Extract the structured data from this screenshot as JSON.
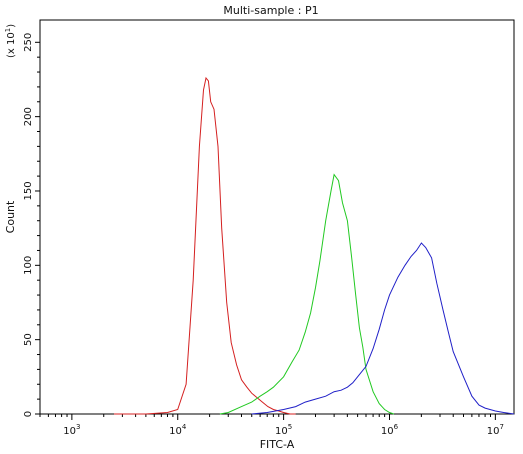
{
  "chart_data": {
    "type": "line",
    "title": "Multi-sample : P1",
    "xlabel": "FITC-A",
    "ylabel": "Count",
    "y_multiplier_label": "(x 10",
    "y_multiplier_exp": "1",
    "x_scale": "log",
    "xlim": [
      500,
      15000000
    ],
    "ylim": [
      0,
      265
    ],
    "x_ticks": [
      {
        "value": 1000,
        "base": "10",
        "exp": "3"
      },
      {
        "value": 10000,
        "base": "10",
        "exp": "4"
      },
      {
        "value": 100000,
        "base": "10",
        "exp": "5"
      },
      {
        "value": 1000000,
        "base": "10",
        "exp": "6"
      },
      {
        "value": 10000000,
        "base": "10",
        "exp": "7"
      }
    ],
    "y_ticks": [
      0,
      50,
      100,
      150,
      200,
      250
    ],
    "grid": false,
    "legend": "none",
    "series": [
      {
        "color": "#d42020",
        "x": [
          2500,
          5000,
          8000,
          10000,
          12000,
          14000,
          16000,
          17500,
          18500,
          19500,
          20500,
          22000,
          24000,
          26000,
          29000,
          32000,
          36000,
          40000,
          45000,
          50000,
          56000,
          63000,
          71000,
          80000,
          90000,
          100000,
          115000,
          130000
        ],
        "y": [
          0,
          0,
          1,
          3,
          20,
          90,
          180,
          218,
          226,
          224,
          210,
          205,
          180,
          125,
          75,
          48,
          33,
          23,
          18,
          14,
          11,
          8,
          5,
          3,
          2,
          1,
          0,
          0
        ]
      },
      {
        "color": "#22c922",
        "x": [
          25000,
          30000,
          40000,
          50000,
          60000,
          70000,
          80000,
          100000,
          120000,
          140000,
          160000,
          180000,
          200000,
          220000,
          250000,
          280000,
          300000,
          330000,
          360000,
          400000,
          440000,
          480000,
          520000,
          560000,
          600000,
          700000,
          800000,
          900000,
          1000000,
          1100000
        ],
        "y": [
          0,
          1,
          5,
          8,
          12,
          15,
          18,
          25,
          35,
          43,
          55,
          68,
          85,
          103,
          130,
          150,
          161,
          157,
          142,
          130,
          105,
          80,
          58,
          45,
          30,
          15,
          7,
          3,
          1,
          0
        ]
      },
      {
        "color": "#2020c8",
        "x": [
          50000,
          70000,
          100000,
          130000,
          160000,
          200000,
          250000,
          300000,
          350000,
          400000,
          450000,
          500000,
          600000,
          700000,
          800000,
          900000,
          1000000,
          1200000,
          1400000,
          1600000,
          1800000,
          2000000,
          2200000,
          2500000,
          2800000,
          3200000,
          3600000,
          4000000,
          5000000,
          6000000,
          7000000,
          8000000,
          10000000,
          12000000,
          15000000
        ],
        "y": [
          0,
          1,
          3,
          5,
          8,
          10,
          12,
          15,
          16,
          18,
          21,
          25,
          32,
          44,
          57,
          70,
          80,
          92,
          100,
          106,
          110,
          115,
          112,
          105,
          88,
          70,
          55,
          42,
          25,
          12,
          6,
          4,
          2,
          1,
          0
        ]
      }
    ]
  }
}
